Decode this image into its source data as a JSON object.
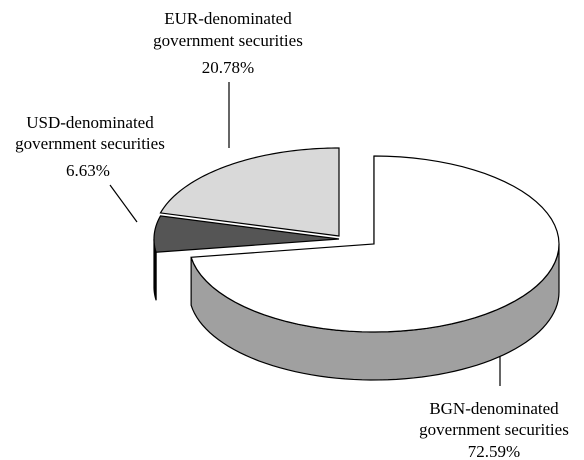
{
  "chart_data": {
    "type": "pie",
    "slices": [
      {
        "label_lines": [
          "BGN-denominated",
          "government securities"
        ],
        "value": 72.59,
        "value_text": "72.59%",
        "color": "#ffffff",
        "side_color": "#a0a0a0"
      },
      {
        "label_lines": [
          "USD-denominated",
          "government securities"
        ],
        "value": 6.63,
        "value_text": "6.63%",
        "color": "#555555",
        "side_color": "#000000"
      },
      {
        "label_lines": [
          "EUR-denominated",
          "government securities"
        ],
        "value": 20.78,
        "value_text": "20.78%",
        "color": "#d9d9d9",
        "side_color": "#b0b0b0"
      }
    ]
  }
}
